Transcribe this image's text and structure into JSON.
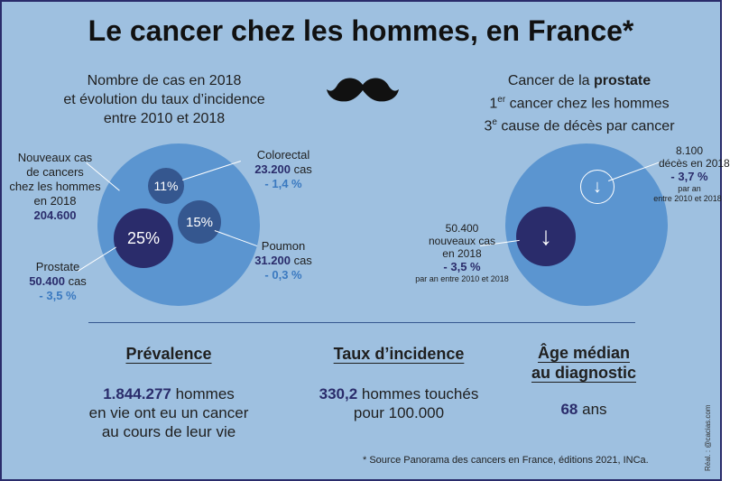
{
  "title": "Le cancer chez les hommes, en France*",
  "left_section": {
    "subtitle_line1": "Nombre de cas en 2018",
    "subtitle_line2": "et évolution du taux d’incidence",
    "subtitle_line3": "entre 2010 et 2018",
    "total": {
      "line1": "Nouveaux cas",
      "line2": "de cancers",
      "line3": "chez les hommes",
      "line4": "en 2018",
      "value": "204.600"
    },
    "colorectal": {
      "name": "Colorectal",
      "value": "23.200",
      "unit": "cas",
      "change": "- 1,4 %",
      "pct": "11%"
    },
    "poumon": {
      "name": "Poumon",
      "value": "31.200",
      "unit": "cas",
      "change": "- 0,3 %",
      "pct": "15%"
    },
    "prostate": {
      "name": "Prostate",
      "value": "50.400",
      "unit": "cas",
      "change": "- 3,5 %",
      "pct": "25%"
    }
  },
  "mustache_icon": "mustache-icon",
  "right_section": {
    "title_prefix": "Cancer de la ",
    "title_bold": "prostate",
    "rank_prefix": "1",
    "rank_sup": "er",
    "rank_rest": " cancer chez les hommes",
    "death_prefix": "3",
    "death_sup": "e",
    "death_rest": " cause de décès par cancer",
    "deaths": {
      "value": "8.100",
      "label": "décès en 2018",
      "change": "- 3,7 %",
      "note1": "par an",
      "note2": "entre 2010 et 2018",
      "arrow": "↓"
    },
    "cases": {
      "value": "50.400",
      "label1": "nouveaux cas",
      "label2": "en 2018",
      "change": "- 3,5 %",
      "note": "par an entre 2010 et 2018",
      "arrow": "↓"
    }
  },
  "stats": {
    "prevalence": {
      "heading": "Prévalence",
      "value": "1.844.277",
      "line1_rest": " hommes",
      "line2": "en vie ont eu un cancer",
      "line3": "au cours de leur vie"
    },
    "incidence": {
      "heading": "Taux d’incidence",
      "value": "330,2",
      "line1_rest": " hommes touchés",
      "line2": "pour 100.000"
    },
    "age": {
      "heading_line1": "Âge médian",
      "heading_line2": "au diagnostic",
      "value": "68",
      "unit": " ans"
    }
  },
  "source": "* Source Panorama des cancers en France, éditions 2021, INCa.",
  "credit": "Réal. : @cacias.com",
  "colors": {
    "background": "#9ec0e0",
    "circle_outer": "#5b95d0",
    "circle_mid": "#35578f",
    "circle_dark": "#2a2c6b",
    "accent_blue": "#3a79c0"
  }
}
